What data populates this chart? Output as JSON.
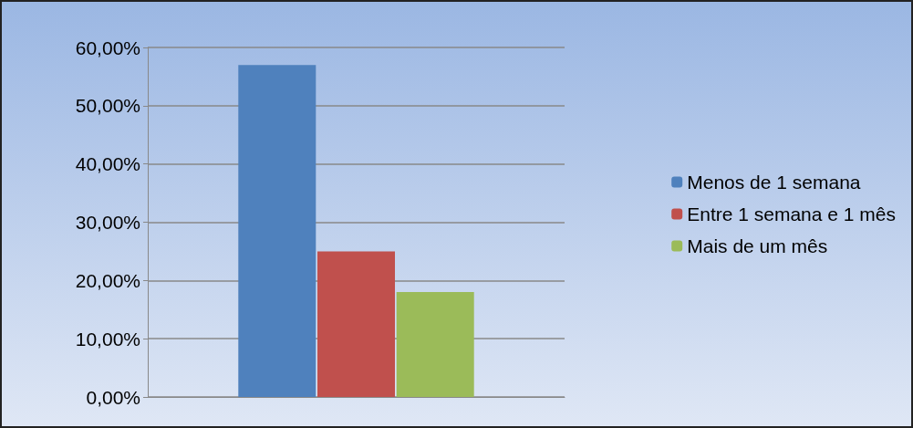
{
  "chart_data": {
    "type": "bar",
    "categories": [
      null
    ],
    "series": [
      {
        "name": "Menos de 1 semana",
        "color": "#4f81bd",
        "values": [
          57
        ]
      },
      {
        "name": "Entre 1 semana e 1 mês",
        "color": "#c0504d",
        "values": [
          25
        ]
      },
      {
        "name": "Mais de um mês",
        "color": "#9bbb59",
        "values": [
          18
        ]
      }
    ],
    "ylim": [
      0,
      60
    ],
    "yticks": [
      {
        "value": 0,
        "label": "0,00%"
      },
      {
        "value": 10,
        "label": "10,00%"
      },
      {
        "value": 20,
        "label": "20,00%"
      },
      {
        "value": 30,
        "label": "30,00%"
      },
      {
        "value": 40,
        "label": "40,00%"
      },
      {
        "value": 50,
        "label": "50,00%"
      },
      {
        "value": 60,
        "label": "60,00%"
      }
    ],
    "grid": "y",
    "legend": "right"
  }
}
